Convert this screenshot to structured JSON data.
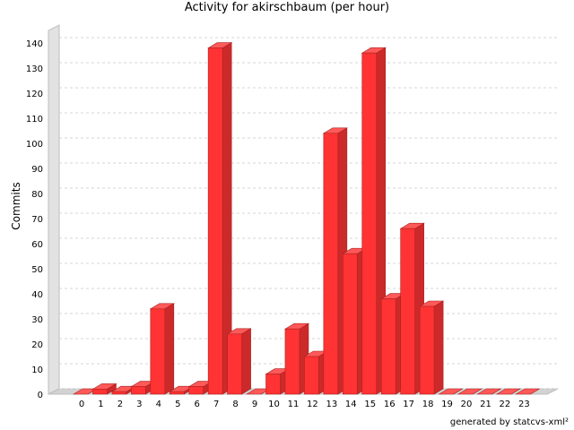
{
  "chart_data": {
    "type": "bar",
    "title": "Activity for akirschbaum (per hour)",
    "xlabel": "",
    "ylabel": "Commits",
    "categories": [
      "0",
      "1",
      "2",
      "3",
      "4",
      "5",
      "6",
      "7",
      "8",
      "9",
      "10",
      "11",
      "12",
      "13",
      "14",
      "15",
      "16",
      "17",
      "18",
      "19",
      "20",
      "21",
      "22",
      "23"
    ],
    "values": [
      0,
      2,
      1,
      3,
      34,
      1,
      3,
      138,
      24,
      0,
      8,
      26,
      15,
      104,
      56,
      136,
      38,
      66,
      35,
      0,
      0,
      0,
      0,
      0
    ],
    "ylim": [
      0,
      145
    ],
    "yticks": [
      0,
      10,
      20,
      30,
      40,
      50,
      60,
      70,
      80,
      90,
      100,
      110,
      120,
      130,
      140
    ],
    "grid": true,
    "bar_color": "#ff3333",
    "style": "3d"
  },
  "footer": "generated by statcvs-xml²"
}
